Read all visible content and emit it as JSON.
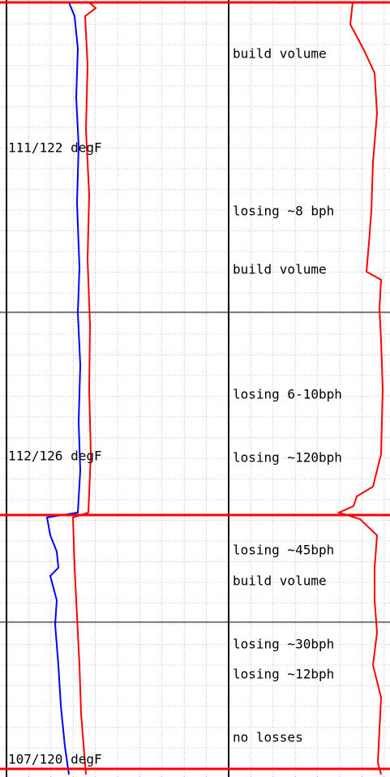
{
  "temperature_labels": [
    "111/122 degF",
    "112/126 degF",
    "107/120 degF"
  ],
  "remarks": [
    "build volume",
    "losing ~8 bph",
    "build volume",
    "losing 6-10bph",
    "losing ~120bph",
    "losing ~45bph",
    "build volume",
    "losing ~30bph",
    "losing ~12bph",
    "no losses"
  ]
}
